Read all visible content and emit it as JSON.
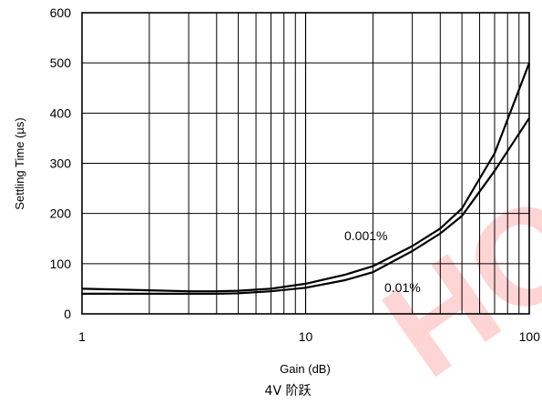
{
  "chart_data": {
    "type": "line",
    "xscale": "log",
    "xlim": [
      1,
      100
    ],
    "ylim": [
      0,
      600
    ],
    "grid": true,
    "xlabel": "Gain (dB)",
    "ylabel": "Settling Time (µs)",
    "caption": "4V 阶跃",
    "xticks": [
      1,
      10,
      100
    ],
    "yticks": [
      0,
      100,
      200,
      300,
      400,
      500,
      600
    ],
    "series": [
      {
        "name": "0.001%",
        "x": [
          1,
          2,
          3,
          4,
          5,
          7,
          10,
          15,
          20,
          30,
          40,
          50,
          70,
          100
        ],
        "y": [
          50,
          47,
          45,
          45,
          46,
          50,
          60,
          78,
          95,
          135,
          170,
          210,
          320,
          500
        ]
      },
      {
        "name": "0.01%",
        "x": [
          1,
          2,
          3,
          4,
          5,
          7,
          10,
          15,
          20,
          30,
          40,
          50,
          70,
          100
        ],
        "y": [
          40,
          40,
          40,
          40,
          41,
          45,
          52,
          67,
          83,
          125,
          160,
          195,
          285,
          390
        ]
      }
    ]
  },
  "watermark": "HQ"
}
